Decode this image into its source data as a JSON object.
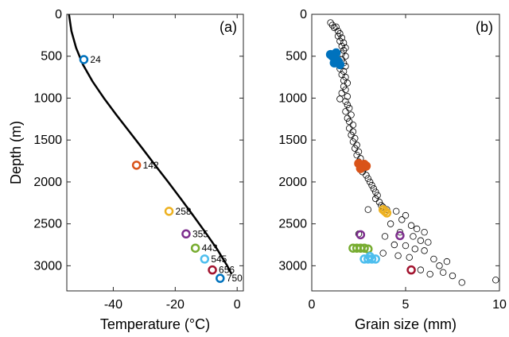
{
  "chart_data": [
    {
      "type": "line",
      "panel_label": "(a)",
      "xlabel": "Temperature (°C)",
      "ylabel": "Depth (m)",
      "xlim": [
        -55,
        2
      ],
      "ylim": [
        0,
        3300
      ],
      "y_reversed": true,
      "xticks": [
        -40,
        -20,
        0
      ],
      "yticks": [
        0,
        500,
        1000,
        1500,
        2000,
        2500,
        3000
      ],
      "grid": false,
      "profile": {
        "temperature": [
          -54.3,
          -53.5,
          -52.0,
          -49.8,
          -46.7,
          -43.0,
          -39.0,
          -34.8,
          -30.6,
          -26.5,
          -22.3,
          -18.2,
          -14.2,
          -10.3,
          -6.5,
          -3.2,
          -1.8
        ],
        "depth": [
          0,
          200,
          400,
          600,
          800,
          1000,
          1200,
          1400,
          1600,
          1800,
          2000,
          2200,
          2400,
          2600,
          2800,
          3000,
          3100
        ],
        "color": "#000000"
      },
      "markers": [
        {
          "label": "24",
          "temperature": -49.5,
          "depth": 540,
          "color": "#0072BD"
        },
        {
          "label": "142",
          "temperature": -32.5,
          "depth": 1800,
          "color": "#D95319"
        },
        {
          "label": "258",
          "temperature": -22.0,
          "depth": 2350,
          "color": "#EDB120"
        },
        {
          "label": "355",
          "temperature": -16.5,
          "depth": 2620,
          "color": "#7E2F8E"
        },
        {
          "label": "443",
          "temperature": -13.5,
          "depth": 2790,
          "color": "#77AC30"
        },
        {
          "label": "545",
          "temperature": -10.5,
          "depth": 2920,
          "color": "#4DBEEE"
        },
        {
          "label": "656",
          "temperature": -8.0,
          "depth": 3050,
          "color": "#A2142F"
        },
        {
          "label": "750",
          "temperature": -5.5,
          "depth": 3150,
          "color": "#0072BD"
        }
      ]
    },
    {
      "type": "scatter",
      "panel_label": "(b)",
      "xlabel": "Grain size (mm)",
      "ylabel": "",
      "xlim": [
        0,
        10
      ],
      "ylim": [
        0,
        3300
      ],
      "y_reversed": true,
      "xticks": [
        0,
        5,
        10
      ],
      "yticks": [
        0,
        500,
        1000,
        1500,
        2000,
        2500,
        3000
      ],
      "grid": false,
      "background_points": {
        "marker": "open-circle",
        "color": "#000000",
        "points": [
          [
            1.0,
            100
          ],
          [
            1.1,
            130
          ],
          [
            1.2,
            160
          ],
          [
            1.3,
            150
          ],
          [
            1.4,
            200
          ],
          [
            1.5,
            230
          ],
          [
            1.4,
            260
          ],
          [
            1.6,
            280
          ],
          [
            1.5,
            320
          ],
          [
            1.7,
            340
          ],
          [
            1.6,
            380
          ],
          [
            1.8,
            400
          ],
          [
            1.7,
            430
          ],
          [
            1.6,
            470
          ],
          [
            1.8,
            500
          ],
          [
            1.6,
            540
          ],
          [
            1.7,
            580
          ],
          [
            1.8,
            620
          ],
          [
            1.5,
            650
          ],
          [
            1.7,
            680
          ],
          [
            1.6,
            720
          ],
          [
            1.8,
            750
          ],
          [
            1.7,
            790
          ],
          [
            1.9,
            820
          ],
          [
            1.7,
            860
          ],
          [
            1.8,
            900
          ],
          [
            1.6,
            940
          ],
          [
            1.9,
            980
          ],
          [
            1.5,
            1010
          ],
          [
            1.8,
            1040
          ],
          [
            1.9,
            1080
          ],
          [
            2.0,
            1120
          ],
          [
            1.8,
            1160
          ],
          [
            2.1,
            1200
          ],
          [
            1.9,
            1240
          ],
          [
            2.0,
            1280
          ],
          [
            2.2,
            1320
          ],
          [
            2.0,
            1360
          ],
          [
            2.2,
            1400
          ],
          [
            2.1,
            1440
          ],
          [
            2.3,
            1480
          ],
          [
            2.2,
            1520
          ],
          [
            2.4,
            1560
          ],
          [
            2.3,
            1600
          ],
          [
            2.5,
            1640
          ],
          [
            2.4,
            1680
          ],
          [
            2.6,
            1720
          ],
          [
            2.5,
            1760
          ],
          [
            2.8,
            1840
          ],
          [
            2.7,
            1880
          ],
          [
            2.9,
            1920
          ],
          [
            3.0,
            1960
          ],
          [
            3.1,
            2000
          ],
          [
            3.2,
            2040
          ],
          [
            3.3,
            2080
          ],
          [
            3.4,
            2120
          ],
          [
            3.5,
            2160
          ],
          [
            3.4,
            2200
          ],
          [
            3.6,
            2240
          ],
          [
            3.7,
            2280
          ],
          [
            3.8,
            2300
          ],
          [
            4.0,
            2330
          ],
          [
            4.5,
            2350
          ],
          [
            5.0,
            2400
          ],
          [
            4.8,
            2450
          ],
          [
            4.2,
            2500
          ],
          [
            5.3,
            2520
          ],
          [
            5.6,
            2560
          ],
          [
            6.0,
            2600
          ],
          [
            4.7,
            2600
          ],
          [
            5.4,
            2650
          ],
          [
            3.9,
            2650
          ],
          [
            5.8,
            2700
          ],
          [
            6.2,
            2720
          ],
          [
            4.4,
            2750
          ],
          [
            5.0,
            2760
          ],
          [
            5.5,
            2800
          ],
          [
            6.0,
            2820
          ],
          [
            3.8,
            2850
          ],
          [
            4.6,
            2880
          ],
          [
            5.2,
            2900
          ],
          [
            6.5,
            2920
          ],
          [
            7.2,
            2950
          ],
          [
            6.8,
            3000
          ],
          [
            5.8,
            3050
          ],
          [
            7.0,
            3080
          ],
          [
            6.3,
            3100
          ],
          [
            7.5,
            3120
          ],
          [
            8.0,
            3200
          ],
          [
            9.8,
            3170
          ],
          [
            3.0,
            2330
          ],
          [
            2.5,
            2620
          ]
        ]
      },
      "highlight_groups": [
        {
          "label": "24",
          "color": "#0072BD",
          "filled": true,
          "points": [
            [
              1.0,
              480
            ],
            [
              1.1,
              500
            ],
            [
              1.2,
              520
            ],
            [
              1.3,
              540
            ],
            [
              1.4,
              560
            ],
            [
              1.2,
              580
            ],
            [
              1.5,
              600
            ],
            [
              1.3,
              460
            ]
          ]
        },
        {
          "label": "142",
          "color": "#D95319",
          "filled": true,
          "points": [
            [
              2.5,
              1780
            ],
            [
              2.6,
              1800
            ],
            [
              2.7,
              1820
            ],
            [
              2.8,
              1790
            ],
            [
              2.9,
              1810
            ],
            [
              2.6,
              1840
            ]
          ]
        },
        {
          "label": "258",
          "color": "#EDB120",
          "filled": false,
          "points": [
            [
              3.8,
              2330
            ],
            [
              3.9,
              2350
            ],
            [
              4.0,
              2370
            ]
          ]
        },
        {
          "label": "355",
          "color": "#7E2F8E",
          "filled": false,
          "points": [
            [
              2.6,
              2630
            ],
            [
              4.7,
              2640
            ]
          ]
        },
        {
          "label": "443",
          "color": "#77AC30",
          "filled": false,
          "points": [
            [
              2.2,
              2790
            ],
            [
              2.4,
              2790
            ],
            [
              2.6,
              2790
            ],
            [
              2.8,
              2790
            ],
            [
              3.0,
              2800
            ]
          ]
        },
        {
          "label": "545",
          "color": "#4DBEEE",
          "filled": false,
          "points": [
            [
              2.8,
              2920
            ],
            [
              3.0,
              2920
            ],
            [
              3.2,
              2920
            ],
            [
              3.4,
              2920
            ],
            [
              3.1,
              2890
            ]
          ]
        },
        {
          "label": "656",
          "color": "#A2142F",
          "filled": false,
          "points": [
            [
              5.3,
              3050
            ]
          ]
        }
      ]
    }
  ]
}
